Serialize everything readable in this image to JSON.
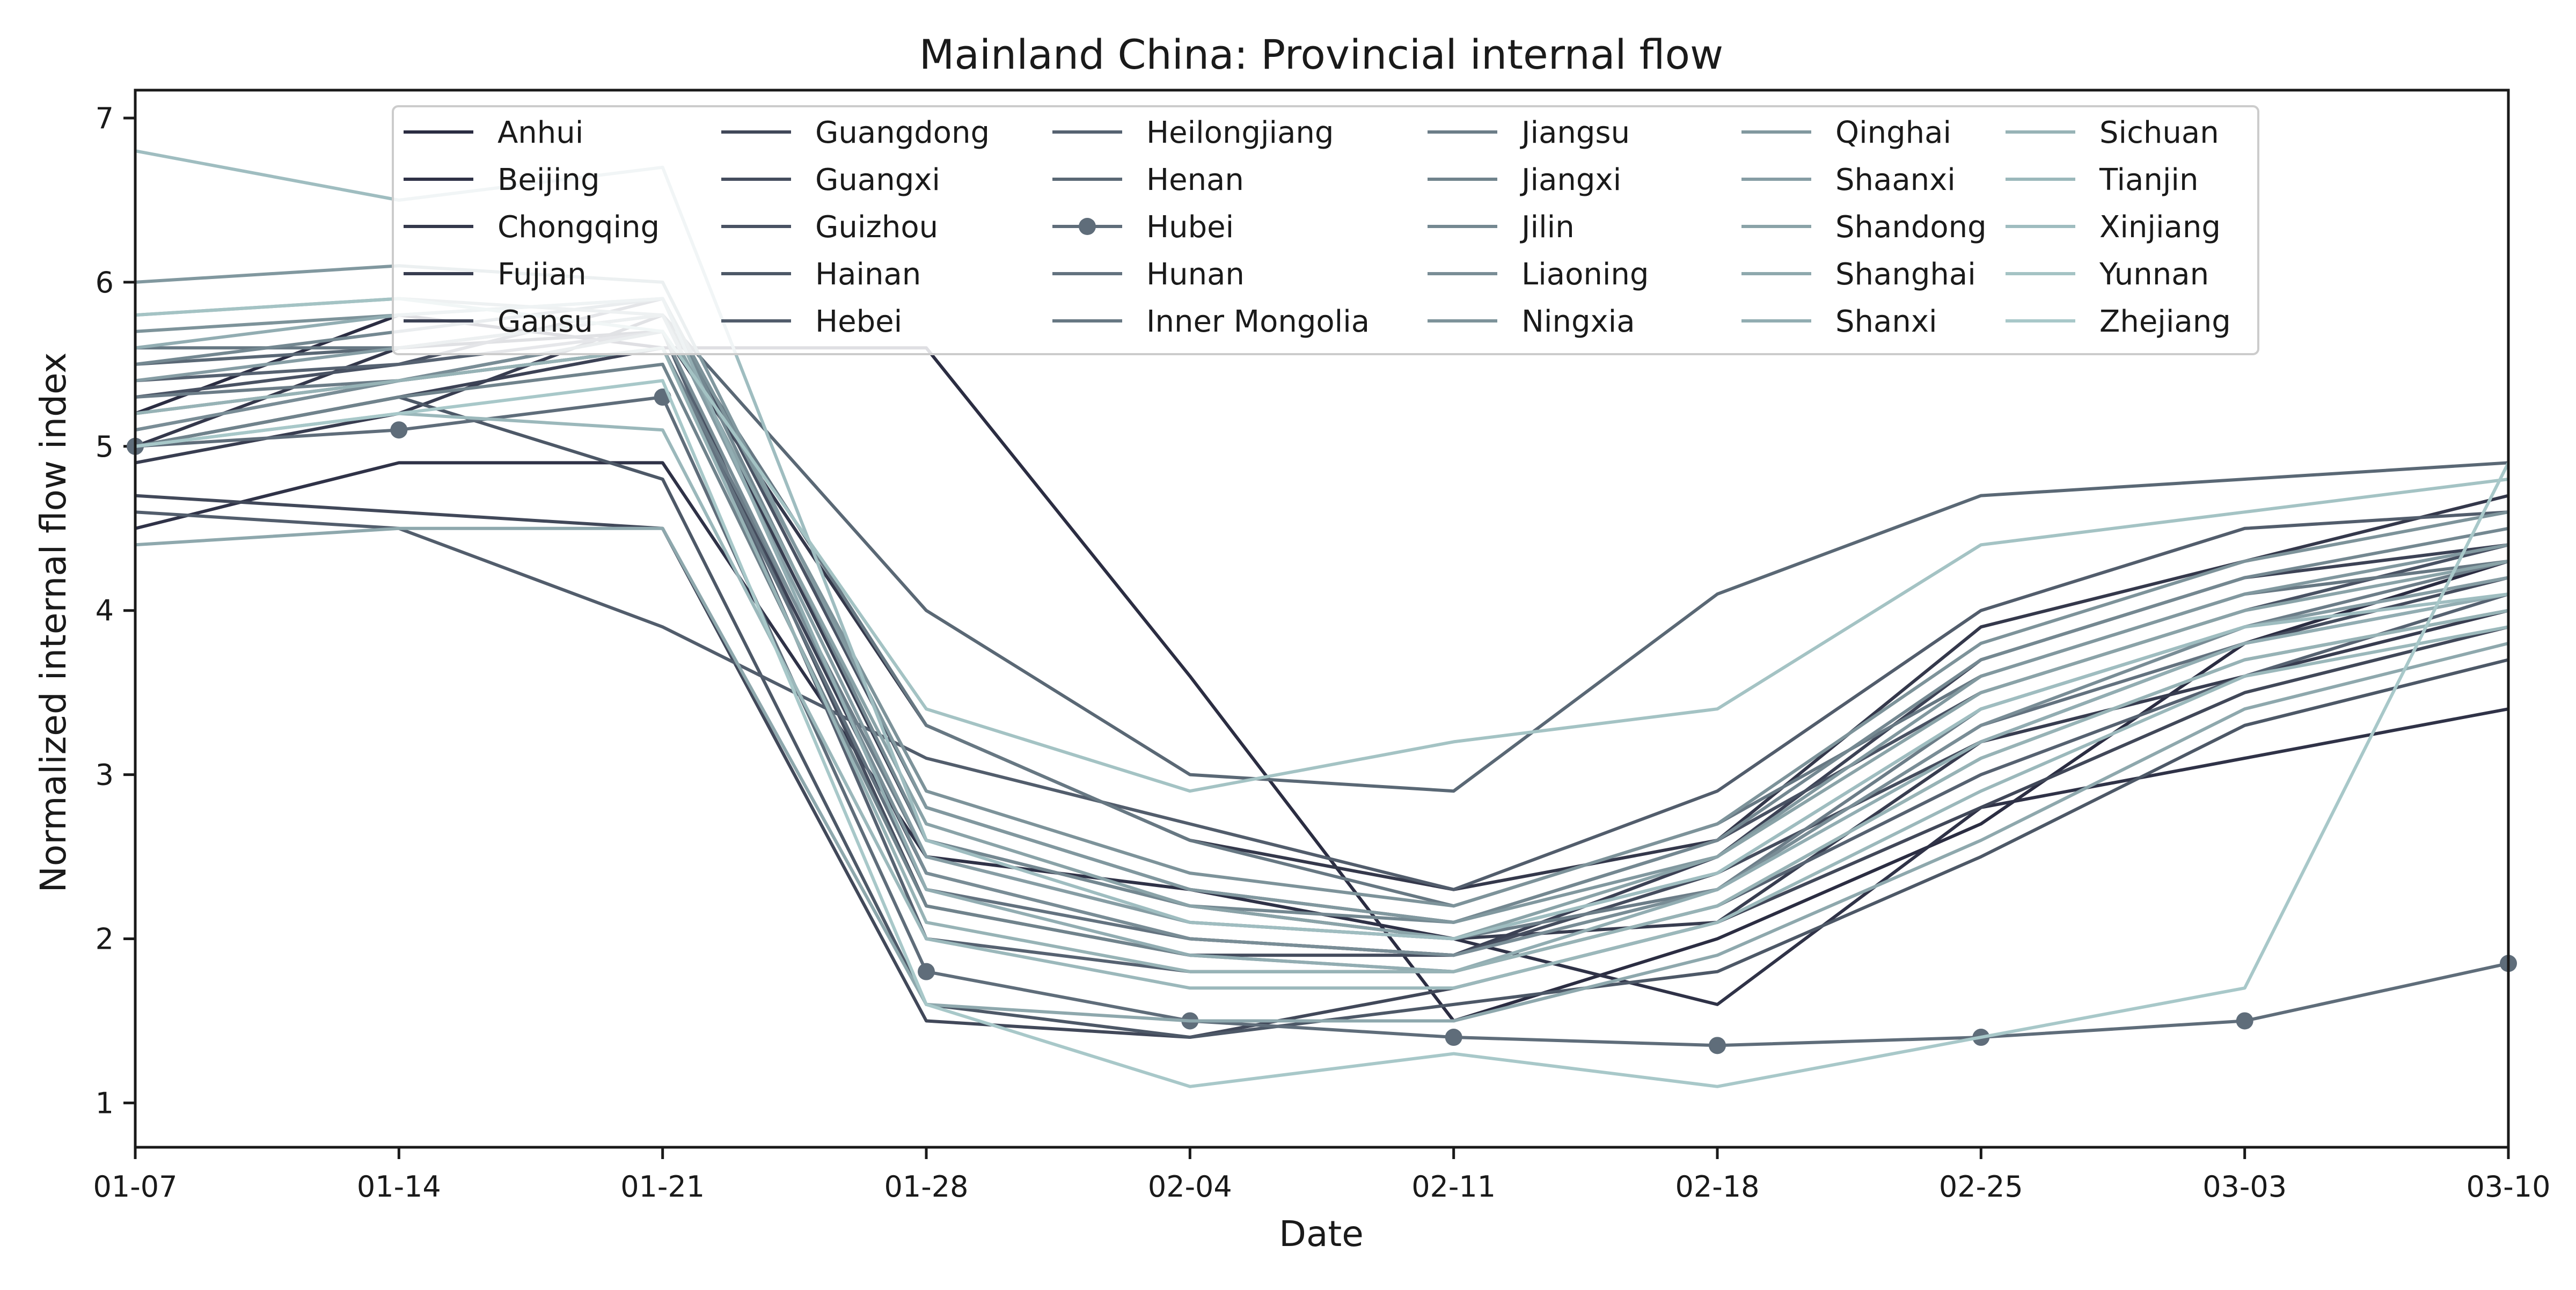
{
  "chart_data": {
    "type": "line",
    "title": "Mainland China: Provincial internal flow",
    "xlabel": "Date",
    "ylabel": "Normalized internal flow index",
    "x_ticks": [
      "01-07",
      "01-14",
      "01-21",
      "01-28",
      "02-04",
      "02-11",
      "02-18",
      "02-25",
      "03-03",
      "03-10"
    ],
    "y_ticks": [
      "1",
      "2",
      "3",
      "4",
      "5",
      "6",
      "7"
    ],
    "x_range": [
      "01-07",
      "03-10"
    ],
    "ylim": [
      0.73,
      7.17
    ],
    "x_dates": [
      "01-07",
      "01-14",
      "01-21",
      "01-28",
      "02-04",
      "02-11",
      "02-18",
      "02-25",
      "03-03",
      "03-10"
    ],
    "grid": false,
    "legend": {
      "placement": "top-center",
      "columns": 6
    },
    "color_start": "#2b2d42",
    "color_end": "#a8c8c9",
    "series": [
      {
        "name": "Anhui",
        "marker": false,
        "values": [
          5.2,
          5.8,
          5.6,
          5.6,
          3.6,
          1.5,
          2.0,
          2.7,
          3.8,
          4.3
        ]
      },
      {
        "name": "Beijing",
        "marker": false,
        "values": [
          4.5,
          4.9,
          4.9,
          2.5,
          2.3,
          2.0,
          1.6,
          2.8,
          3.1,
          3.4
        ]
      },
      {
        "name": "Chongqing",
        "marker": false,
        "values": [
          5.0,
          5.6,
          5.7,
          3.3,
          2.6,
          2.3,
          2.6,
          3.9,
          4.3,
          4.7
        ]
      },
      {
        "name": "Fujian",
        "marker": false,
        "values": [
          4.9,
          5.2,
          5.8,
          2.6,
          2.2,
          2.0,
          2.1,
          3.2,
          3.6,
          4.0
        ]
      },
      {
        "name": "Gansu",
        "marker": false,
        "values": [
          5.0,
          5.3,
          5.6,
          2.4,
          2.0,
          1.9,
          2.5,
          3.7,
          4.2,
          4.4
        ]
      },
      {
        "name": "Guangdong",
        "marker": false,
        "values": [
          4.7,
          4.6,
          4.5,
          1.5,
          1.4,
          1.7,
          2.1,
          2.8,
          3.5,
          3.9
        ]
      },
      {
        "name": "Guangxi",
        "marker": false,
        "values": [
          5.1,
          5.4,
          5.7,
          2.2,
          1.9,
          1.9,
          2.4,
          3.2,
          3.8,
          4.2
        ]
      },
      {
        "name": "Guizhou",
        "marker": false,
        "values": [
          5.3,
          5.5,
          5.9,
          2.8,
          2.3,
          2.1,
          2.6,
          3.5,
          4.0,
          4.4
        ]
      },
      {
        "name": "Hainan",
        "marker": false,
        "values": [
          5.0,
          5.3,
          4.8,
          1.6,
          1.4,
          1.6,
          1.8,
          2.5,
          3.3,
          3.7
        ]
      },
      {
        "name": "Hebei",
        "marker": false,
        "values": [
          4.6,
          4.5,
          3.9,
          3.1,
          2.7,
          2.3,
          2.9,
          4.0,
          4.5,
          4.6
        ]
      },
      {
        "name": "Heilongjiang",
        "marker": false,
        "values": [
          5.4,
          5.5,
          5.7,
          2.0,
          1.8,
          1.8,
          2.2,
          3.0,
          3.6,
          4.1
        ]
      },
      {
        "name": "Henan",
        "marker": false,
        "values": [
          5.5,
          5.6,
          5.8,
          4.0,
          3.0,
          2.9,
          4.1,
          4.7,
          4.8,
          4.9
        ]
      },
      {
        "name": "Hubei",
        "marker": true,
        "values": [
          5.0,
          5.1,
          5.3,
          1.8,
          1.5,
          1.4,
          1.35,
          1.4,
          1.5,
          1.85
        ]
      },
      {
        "name": "Hunan",
        "marker": false,
        "values": [
          5.2,
          5.4,
          5.6,
          2.3,
          2.0,
          1.9,
          2.3,
          3.3,
          3.8,
          4.1
        ]
      },
      {
        "name": "Inner Mongolia",
        "marker": false,
        "values": [
          5.6,
          5.6,
          5.8,
          3.3,
          2.6,
          2.2,
          2.7,
          3.6,
          4.1,
          4.3
        ]
      },
      {
        "name": "Jiangsu",
        "marker": false,
        "values": [
          5.3,
          5.4,
          5.6,
          2.5,
          2.1,
          2.0,
          2.3,
          3.4,
          3.9,
          4.3
        ]
      },
      {
        "name": "Jiangxi",
        "marker": false,
        "values": [
          5.0,
          5.3,
          5.5,
          2.2,
          1.9,
          1.8,
          2.2,
          3.1,
          3.7,
          4.0
        ]
      },
      {
        "name": "Jilin",
        "marker": false,
        "values": [
          5.5,
          5.7,
          5.9,
          2.6,
          2.2,
          2.1,
          2.6,
          3.7,
          4.2,
          4.5
        ]
      },
      {
        "name": "Liaoning",
        "marker": false,
        "values": [
          5.1,
          5.4,
          5.7,
          2.4,
          2.0,
          1.9,
          2.3,
          3.3,
          3.9,
          4.2
        ]
      },
      {
        "name": "Ningxia",
        "marker": false,
        "values": [
          5.7,
          5.8,
          5.9,
          2.9,
          2.4,
          2.2,
          2.7,
          3.8,
          4.3,
          4.6
        ]
      },
      {
        "name": "Qinghai",
        "marker": false,
        "values": [
          6.0,
          6.1,
          6.0,
          2.8,
          2.3,
          2.1,
          2.5,
          3.6,
          4.1,
          4.4
        ]
      },
      {
        "name": "Shaanxi",
        "marker": false,
        "values": [
          5.4,
          5.6,
          5.8,
          2.5,
          2.1,
          2.0,
          2.4,
          3.4,
          3.9,
          4.2
        ]
      },
      {
        "name": "Shandong",
        "marker": false,
        "values": [
          5.8,
          5.9,
          5.8,
          2.7,
          2.2,
          2.0,
          2.5,
          3.5,
          4.0,
          4.3
        ]
      },
      {
        "name": "Shanghai",
        "marker": false,
        "values": [
          4.4,
          4.5,
          4.5,
          1.6,
          1.5,
          1.5,
          1.9,
          2.6,
          3.4,
          3.8
        ]
      },
      {
        "name": "Shanxi",
        "marker": false,
        "values": [
          5.6,
          5.8,
          5.9,
          2.3,
          1.9,
          1.8,
          2.3,
          3.2,
          3.8,
          4.1
        ]
      },
      {
        "name": "Sichuan",
        "marker": false,
        "values": [
          5.2,
          5.4,
          5.6,
          2.1,
          1.8,
          1.8,
          2.2,
          3.1,
          3.7,
          4.0
        ]
      },
      {
        "name": "Tianjin",
        "marker": false,
        "values": [
          5.0,
          5.2,
          5.1,
          2.0,
          1.7,
          1.7,
          2.1,
          2.9,
          3.6,
          3.9
        ]
      },
      {
        "name": "Xinjiang",
        "marker": false,
        "values": [
          6.8,
          6.5,
          6.7,
          2.6,
          2.1,
          2.0,
          2.4,
          3.4,
          3.9,
          4.1
        ]
      },
      {
        "name": "Yunnan",
        "marker": false,
        "values": [
          5.8,
          5.9,
          5.7,
          3.4,
          2.9,
          3.2,
          3.4,
          4.4,
          4.6,
          4.8
        ]
      },
      {
        "name": "Zhejiang",
        "marker": false,
        "values": [
          5.0,
          5.2,
          5.4,
          1.6,
          1.1,
          1.3,
          1.1,
          1.4,
          1.7,
          4.9
        ]
      }
    ]
  }
}
